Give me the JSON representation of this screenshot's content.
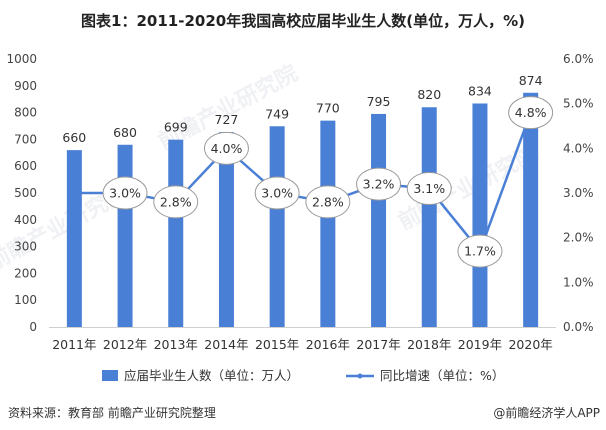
{
  "title": "图表1：2011-2020年我国高校应届毕业生人数(单位，万人，%)",
  "source": "资料来源：教育部 前瞻产业研究院整理",
  "brand": "@前瞻经济学人APP",
  "watermark": "前瞻产业研究院",
  "colors": {
    "bar": "#4a7fd6",
    "line": "#4a7fd6",
    "bubble_border": "#9a9a9a"
  },
  "chart_data": {
    "type": "bar",
    "categories": [
      "2011年",
      "2012年",
      "2013年",
      "2014年",
      "2015年",
      "2016年",
      "2017年",
      "2018年",
      "2019年",
      "2020年"
    ],
    "series": [
      {
        "name": "应届毕业生人数（单位：万人）",
        "type": "bar",
        "axis": "left",
        "values": [
          660,
          680,
          699,
          727,
          749,
          770,
          795,
          820,
          834,
          874
        ],
        "labels": [
          "660",
          "680",
          "699",
          "727",
          "749",
          "770",
          "795",
          "820",
          "834",
          "874"
        ]
      },
      {
        "name": "同比增速（单位：%）",
        "type": "line",
        "axis": "right",
        "values": [
          3.0,
          3.0,
          2.8,
          4.0,
          3.0,
          2.8,
          3.2,
          3.1,
          1.7,
          4.8
        ],
        "labels": [
          "",
          "3.0%",
          "2.8%",
          "4.0%",
          "3.0%",
          "2.8%",
          "3.2%",
          "3.1%",
          "1.7%",
          "4.8%"
        ]
      }
    ],
    "y_left": {
      "min": 0,
      "max": 1000,
      "ticks": [
        "0",
        "100",
        "200",
        "300",
        "400",
        "500",
        "600",
        "700",
        "800",
        "900",
        "1000"
      ]
    },
    "y_right": {
      "min": 0,
      "max": 6,
      "ticks": [
        "0.0%",
        "1.0%",
        "2.0%",
        "3.0%",
        "4.0%",
        "5.0%",
        "6.0%"
      ]
    },
    "grid": false,
    "legend": "bottom"
  }
}
